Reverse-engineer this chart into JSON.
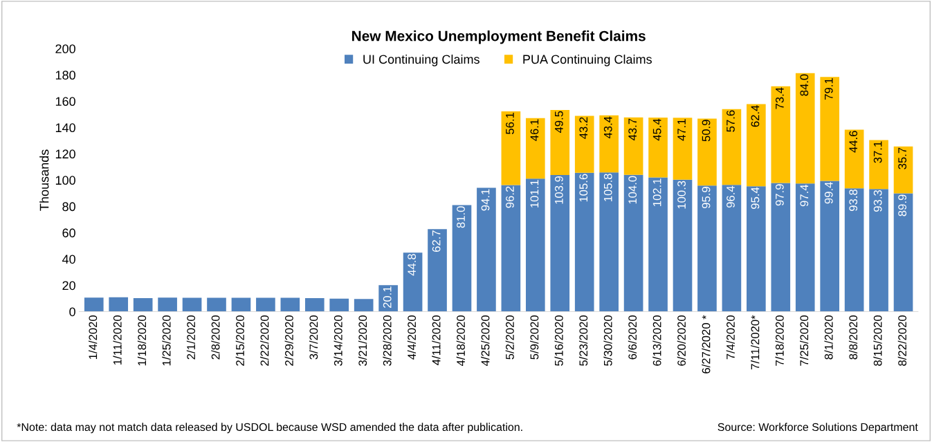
{
  "chart_data": {
    "type": "bar",
    "title": "New Mexico Unemployment Benefit Claims",
    "ylabel": "Thousands",
    "categories": [
      "1/4/2020",
      "1/11/2020",
      "1/18/2020",
      "1/25/2020",
      "2/1/2020",
      "2/8/2020",
      "2/15/2020",
      "2/22/2020",
      "2/29/2020",
      "3/7/2020",
      "3/14/2020",
      "3/21/2020",
      "3/28/2020",
      "4/4/2020",
      "4/11/2020",
      "4/18/2020",
      "4/25/2020",
      "5/2/2020",
      "5/9/2020",
      "5/16/2020",
      "5/23/2020",
      "5/30/2020",
      "6/6/2020",
      "6/13/2020",
      "6/20/2020",
      "6/27/2020 *",
      "7/4/2020",
      "7/11/2020*",
      "7/18/2020",
      "7/25/2020",
      "8/1/2020",
      "8/8/2020",
      "8/15/2020",
      "8/22/2020"
    ],
    "stacked": true,
    "series": [
      {
        "name": "UI Continuing Claims",
        "color": "#4f81bd",
        "values": [
          10.7,
          10.9,
          10.2,
          10.7,
          10.5,
          10.5,
          10.5,
          10.5,
          10.5,
          10.2,
          9.9,
          9.6,
          20.1,
          44.8,
          62.7,
          81.0,
          94.1,
          96.2,
          101.1,
          103.9,
          105.6,
          105.8,
          104.0,
          102.1,
          100.3,
          95.9,
          96.4,
          95.4,
          97.9,
          97.4,
          99.4,
          93.8,
          93.3,
          89.9
        ],
        "value_labels": [
          null,
          null,
          null,
          null,
          null,
          null,
          null,
          null,
          null,
          null,
          null,
          null,
          "20.1",
          "44.8",
          "62.7",
          "81.0",
          "94.1",
          "96.2",
          "101.1",
          "103.9",
          "105.6",
          "105.8",
          "104.0",
          "102.1",
          "100.3",
          "95.9",
          "96.4",
          "95.4",
          "97.9",
          "97.4",
          "99.4",
          "93.8",
          "93.3",
          "89.9"
        ]
      },
      {
        "name": "PUA Continuing Claims",
        "color": "#ffc000",
        "values": [
          null,
          null,
          null,
          null,
          null,
          null,
          null,
          null,
          null,
          null,
          null,
          null,
          null,
          null,
          null,
          null,
          null,
          56.1,
          46.1,
          49.5,
          43.2,
          43.4,
          43.7,
          45.4,
          47.1,
          50.9,
          57.6,
          62.4,
          73.4,
          84.0,
          79.1,
          44.6,
          37.1,
          35.7
        ],
        "value_labels": [
          null,
          null,
          null,
          null,
          null,
          null,
          null,
          null,
          null,
          null,
          null,
          null,
          null,
          null,
          null,
          null,
          null,
          "56.1",
          "46.1",
          "49.5",
          "43.2",
          "43.4",
          "43.7",
          "45.4",
          "47.1",
          "50.9",
          "57.6",
          "62.4",
          "73.4",
          "84.0",
          "79.1",
          "44.6",
          "37.1",
          "35.7"
        ]
      }
    ],
    "ylim": [
      0,
      200
    ],
    "yticks": [
      0,
      20,
      40,
      60,
      80,
      100,
      120,
      140,
      160,
      180,
      200
    ],
    "grid": false,
    "legend": "top",
    "annotations": [
      "*Note: data may not match data released by USDOL because WSD amended the data after publication.",
      "Source: Workforce Solutions Department"
    ]
  }
}
